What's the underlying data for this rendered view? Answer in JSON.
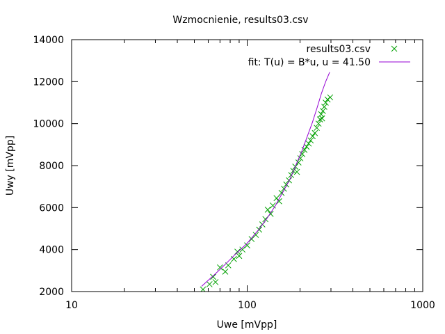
{
  "chart_data": {
    "type": "scatter",
    "title": "Wzmocnienie, results03.csv",
    "xlabel": "Uwe [mVpp]",
    "ylabel": "Uwy [mVpp]",
    "x_scale": "log",
    "xlim": [
      10,
      1000
    ],
    "ylim": [
      2000,
      14000
    ],
    "x_ticks": [
      10,
      100,
      1000
    ],
    "x_tick_labels": [
      "10",
      "100",
      "1000"
    ],
    "y_ticks": [
      2000,
      4000,
      6000,
      8000,
      10000,
      12000,
      14000
    ],
    "y_tick_labels": [
      "2000",
      "4000",
      "6000",
      "8000",
      "10000",
      "12000",
      "14000"
    ],
    "grid": false,
    "legend_position": "top-right",
    "series": [
      {
        "name": "results03.csv",
        "kind": "points",
        "marker": "x",
        "color": "#00a000",
        "points": [
          [
            56,
            2100
          ],
          [
            61,
            2350
          ],
          [
            64,
            2700
          ],
          [
            66,
            2450
          ],
          [
            70,
            3150
          ],
          [
            75,
            2950
          ],
          [
            78,
            3250
          ],
          [
            84,
            3550
          ],
          [
            88,
            3900
          ],
          [
            90,
            3700
          ],
          [
            94,
            4000
          ],
          [
            100,
            4200
          ],
          [
            106,
            4500
          ],
          [
            112,
            4700
          ],
          [
            117,
            4950
          ],
          [
            122,
            5200
          ],
          [
            127,
            5450
          ],
          [
            131,
            5900
          ],
          [
            136,
            5700
          ],
          [
            140,
            6100
          ],
          [
            147,
            6450
          ],
          [
            152,
            6300
          ],
          [
            157,
            6700
          ],
          [
            162,
            6900
          ],
          [
            167,
            7100
          ],
          [
            173,
            7300
          ],
          [
            178,
            7550
          ],
          [
            183,
            7750
          ],
          [
            188,
            7950
          ],
          [
            192,
            7700
          ],
          [
            196,
            8150
          ],
          [
            201,
            8350
          ],
          [
            206,
            8550
          ],
          [
            212,
            8750
          ],
          [
            218,
            8900
          ],
          [
            224,
            9050
          ],
          [
            230,
            9200
          ],
          [
            236,
            9400
          ],
          [
            243,
            9550
          ],
          [
            249,
            9800
          ],
          [
            255,
            10000
          ],
          [
            260,
            10200
          ],
          [
            264,
            10450
          ],
          [
            267,
            10250
          ],
          [
            270,
            10600
          ],
          [
            275,
            10800
          ],
          [
            280,
            11000
          ],
          [
            287,
            11150
          ],
          [
            297,
            11250
          ]
        ]
      },
      {
        "name": "fit: T(u) = B*u, u = 41.50",
        "kind": "line",
        "color": "#9400d3",
        "points": [
          [
            55,
            2250
          ],
          [
            65,
            2800
          ],
          [
            75,
            3300
          ],
          [
            85,
            3750
          ],
          [
            100,
            4300
          ],
          [
            115,
            4900
          ],
          [
            130,
            5500
          ],
          [
            145,
            6100
          ],
          [
            160,
            6750
          ],
          [
            175,
            7350
          ],
          [
            190,
            8050
          ],
          [
            205,
            8700
          ],
          [
            220,
            9400
          ],
          [
            235,
            10050
          ],
          [
            250,
            10750
          ],
          [
            265,
            11450
          ],
          [
            280,
            12000
          ],
          [
            295,
            12450
          ]
        ]
      }
    ]
  }
}
